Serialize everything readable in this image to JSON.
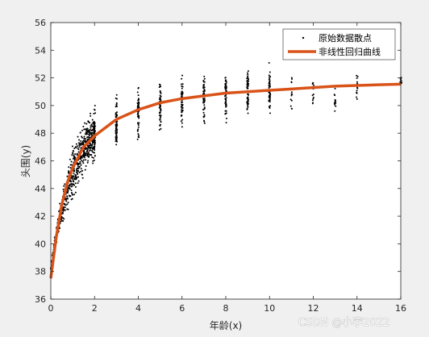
{
  "chart_data": {
    "type": "scatter",
    "xlabel": "年龄(x)",
    "ylabel": "头围(y)",
    "xlim": [
      0,
      16
    ],
    "ylim": [
      36,
      56
    ],
    "x_ticks": [
      "0",
      "2",
      "4",
      "6",
      "8",
      "10",
      "12",
      "14",
      "16"
    ],
    "y_ticks": [
      "36",
      "38",
      "40",
      "42",
      "44",
      "46",
      "48",
      "50",
      "52",
      "54",
      "56"
    ],
    "grid": false,
    "legend_position": "top-right",
    "series": [
      {
        "name": "原始数据散点",
        "kind": "scatter",
        "color": "#000000",
        "continuous_segment": {
          "x_range": [
            0,
            2
          ],
          "y_lower": [
            38.0,
            40.5,
            41.5,
            42.8,
            44.0,
            45.0,
            45.5
          ],
          "y_upper": [
            38.5,
            42.5,
            45.0,
            47.5,
            48.5,
            49.5,
            50.0
          ]
        },
        "column_groups": [
          {
            "x": 2,
            "y_min": 45.5,
            "y_max": 50.2
          },
          {
            "x": 3,
            "y_min": 46.2,
            "y_max": 51.4
          },
          {
            "x": 4,
            "y_min": 47.0,
            "y_max": 52.0
          },
          {
            "x": 5,
            "y_min": 47.3,
            "y_max": 52.5
          },
          {
            "x": 6,
            "y_min": 47.6,
            "y_max": 53.0
          },
          {
            "x": 7,
            "y_min": 48.0,
            "y_max": 53.2
          },
          {
            "x": 8,
            "y_min": 48.2,
            "y_max": 53.3
          },
          {
            "x": 9,
            "y_min": 48.6,
            "y_max": 53.4
          },
          {
            "x": 10,
            "y_min": 49.0,
            "y_max": 53.3
          },
          {
            "x": 11,
            "y_min": 48.8,
            "y_max": 52.8
          },
          {
            "x": 12,
            "y_min": 49.3,
            "y_max": 52.8
          },
          {
            "x": 13,
            "y_min": 49.0,
            "y_max": 51.8
          },
          {
            "x": 14,
            "y_min": 49.9,
            "y_max": 52.5
          },
          {
            "x": 16,
            "y_min": 51.3,
            "y_max": 52.3
          }
        ]
      },
      {
        "name": "非线性回归曲线",
        "kind": "line",
        "color": "#d95319",
        "x": [
          0,
          0.25,
          0.5,
          0.75,
          1,
          1.5,
          2,
          3,
          4,
          5,
          6,
          7,
          8,
          9,
          10,
          11,
          12,
          13,
          14,
          15,
          16
        ],
        "y": [
          37.5,
          40.5,
          42.8,
          44.4,
          45.5,
          47.0,
          47.8,
          49.0,
          49.7,
          50.2,
          50.5,
          50.7,
          50.9,
          51.0,
          51.1,
          51.2,
          51.3,
          51.4,
          51.45,
          51.5,
          51.55
        ]
      }
    ]
  },
  "watermark": "CSDN @小宇2022"
}
